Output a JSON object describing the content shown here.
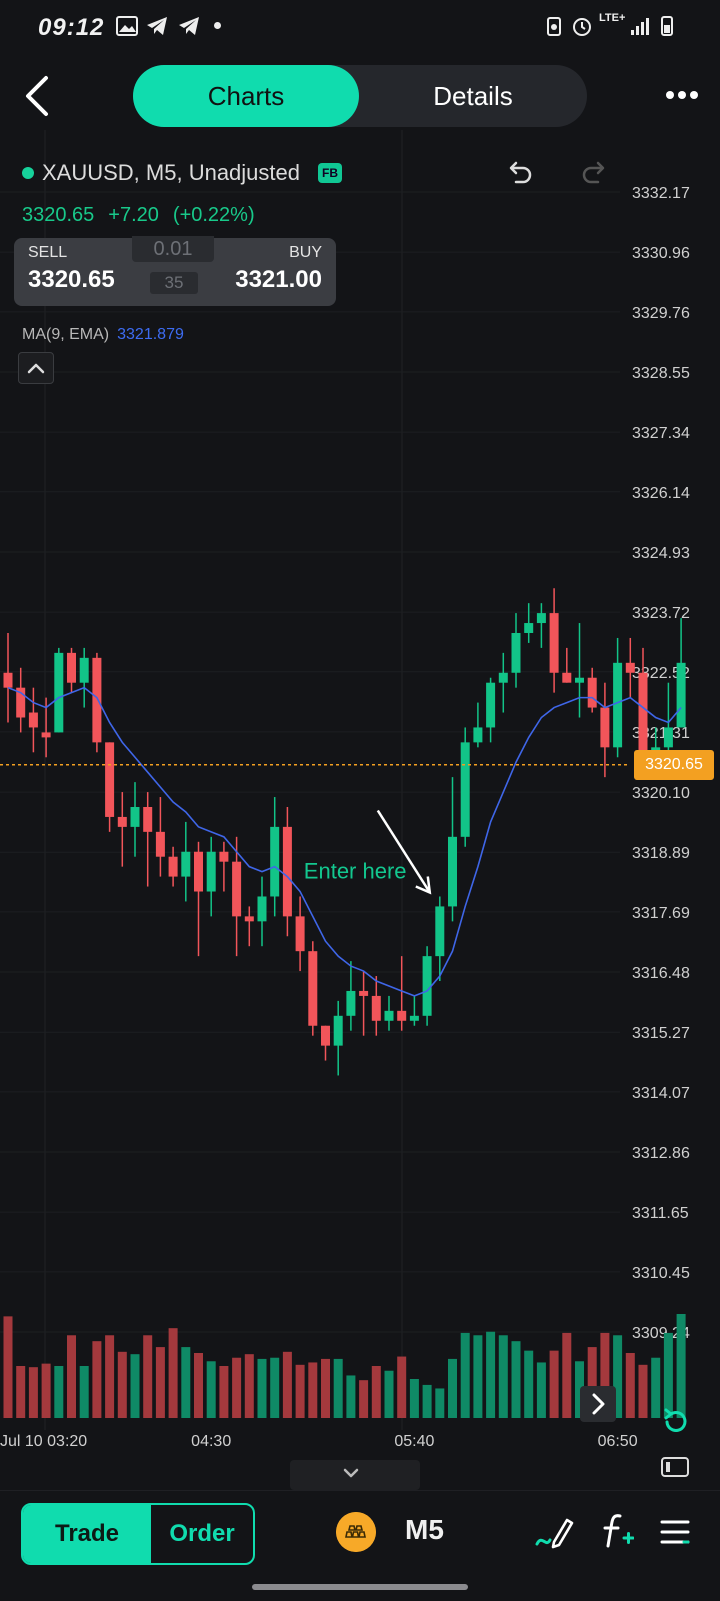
{
  "status_bar": {
    "time": "09:12",
    "network": "LTE+"
  },
  "nav": {
    "tabs": [
      {
        "label": "Charts",
        "active": true
      },
      {
        "label": "Details",
        "active": false
      }
    ]
  },
  "symbol": {
    "title": "XAUUSD, M5, Unadjusted",
    "badge": "FB"
  },
  "quote": {
    "price": "3320.65",
    "change": "+7.20",
    "change_pct": "(+0.22%)"
  },
  "trade_box": {
    "sell_label": "SELL",
    "sell_price": "3320.65",
    "buy_label": "BUY",
    "buy_price": "3321.00",
    "lot": "0.01",
    "spread": "35"
  },
  "indicator": {
    "name": "MA(9, EMA)",
    "value": "3321.879"
  },
  "chart_data": {
    "type": "candlestick",
    "y_ticks": [
      "3332.17",
      "3330.96",
      "3329.76",
      "3328.55",
      "3327.34",
      "3326.14",
      "3324.93",
      "3323.72",
      "3322.52",
      "3321.31",
      "3320.10",
      "3318.89",
      "3317.69",
      "3316.48",
      "3315.27",
      "3314.07",
      "3312.86",
      "3311.65",
      "3310.45",
      "3309.24"
    ],
    "x_ticks": [
      "Jul 10 03:20",
      "04:30",
      "05:40",
      "06:50"
    ],
    "ylim": [
      3309.24,
      3332.17
    ],
    "current_price": "3320.65",
    "annotation": "Enter here",
    "candles": [
      {
        "o": 3322.5,
        "h": 3323.3,
        "l": 3321.5,
        "c": 3322.2
      },
      {
        "o": 3322.2,
        "h": 3322.6,
        "l": 3321.3,
        "c": 3321.6
      },
      {
        "o": 3321.7,
        "h": 3322.2,
        "l": 3320.9,
        "c": 3321.4
      },
      {
        "o": 3321.3,
        "h": 3322.0,
        "l": 3320.8,
        "c": 3321.2
      },
      {
        "o": 3321.3,
        "h": 3323.0,
        "l": 3321.3,
        "c": 3322.9
      },
      {
        "o": 3322.9,
        "h": 3323.0,
        "l": 3322.1,
        "c": 3322.3
      },
      {
        "o": 3322.3,
        "h": 3323.0,
        "l": 3321.8,
        "c": 3322.8
      },
      {
        "o": 3322.8,
        "h": 3322.9,
        "l": 3320.9,
        "c": 3321.1
      },
      {
        "o": 3321.1,
        "h": 3321.1,
        "l": 3319.3,
        "c": 3319.6
      },
      {
        "o": 3319.6,
        "h": 3320.1,
        "l": 3318.6,
        "c": 3319.4
      },
      {
        "o": 3319.4,
        "h": 3320.3,
        "l": 3318.8,
        "c": 3319.8
      },
      {
        "o": 3319.8,
        "h": 3320.1,
        "l": 3318.2,
        "c": 3319.3
      },
      {
        "o": 3319.3,
        "h": 3320.0,
        "l": 3318.4,
        "c": 3318.8
      },
      {
        "o": 3318.8,
        "h": 3319.0,
        "l": 3318.2,
        "c": 3318.4
      },
      {
        "o": 3318.4,
        "h": 3319.5,
        "l": 3317.9,
        "c": 3318.9
      },
      {
        "o": 3318.9,
        "h": 3319.1,
        "l": 3316.8,
        "c": 3318.1
      },
      {
        "o": 3318.1,
        "h": 3319.2,
        "l": 3317.6,
        "c": 3318.9
      },
      {
        "o": 3318.9,
        "h": 3319.1,
        "l": 3318.1,
        "c": 3318.7
      },
      {
        "o": 3318.7,
        "h": 3319.2,
        "l": 3316.8,
        "c": 3317.6
      },
      {
        "o": 3317.6,
        "h": 3317.8,
        "l": 3317.0,
        "c": 3317.5
      },
      {
        "o": 3317.5,
        "h": 3318.4,
        "l": 3317.0,
        "c": 3318.0
      },
      {
        "o": 3318.0,
        "h": 3320.0,
        "l": 3317.6,
        "c": 3319.4
      },
      {
        "o": 3319.4,
        "h": 3319.8,
        "l": 3317.2,
        "c": 3317.6
      },
      {
        "o": 3317.6,
        "h": 3318.0,
        "l": 3316.5,
        "c": 3316.9
      },
      {
        "o": 3316.9,
        "h": 3317.1,
        "l": 3315.2,
        "c": 3315.4
      },
      {
        "o": 3315.4,
        "h": 3315.4,
        "l": 3314.7,
        "c": 3315.0
      },
      {
        "o": 3315.0,
        "h": 3315.9,
        "l": 3314.4,
        "c": 3315.6
      },
      {
        "o": 3315.6,
        "h": 3316.7,
        "l": 3315.3,
        "c": 3316.1
      },
      {
        "o": 3316.1,
        "h": 3316.5,
        "l": 3315.2,
        "c": 3316.0
      },
      {
        "o": 3316.0,
        "h": 3316.4,
        "l": 3315.2,
        "c": 3315.5
      },
      {
        "o": 3315.5,
        "h": 3316.0,
        "l": 3315.3,
        "c": 3315.7
      },
      {
        "o": 3315.7,
        "h": 3316.8,
        "l": 3315.3,
        "c": 3315.5
      },
      {
        "o": 3315.5,
        "h": 3316.0,
        "l": 3315.4,
        "c": 3315.6
      },
      {
        "o": 3315.6,
        "h": 3317.0,
        "l": 3315.4,
        "c": 3316.8
      },
      {
        "o": 3316.8,
        "h": 3318.0,
        "l": 3316.3,
        "c": 3317.8
      },
      {
        "o": 3317.8,
        "h": 3320.4,
        "l": 3317.5,
        "c": 3319.2
      },
      {
        "o": 3319.2,
        "h": 3321.4,
        "l": 3319.0,
        "c": 3321.1
      },
      {
        "o": 3321.1,
        "h": 3321.9,
        "l": 3321.0,
        "c": 3321.4
      },
      {
        "o": 3321.4,
        "h": 3322.4,
        "l": 3321.1,
        "c": 3322.3
      },
      {
        "o": 3322.3,
        "h": 3322.9,
        "l": 3321.7,
        "c": 3322.5
      },
      {
        "o": 3322.5,
        "h": 3323.7,
        "l": 3322.2,
        "c": 3323.3
      },
      {
        "o": 3323.3,
        "h": 3323.9,
        "l": 3323.1,
        "c": 3323.5
      },
      {
        "o": 3323.5,
        "h": 3323.9,
        "l": 3323.0,
        "c": 3323.7
      },
      {
        "o": 3323.7,
        "h": 3324.2,
        "l": 3322.1,
        "c": 3322.5
      },
      {
        "o": 3322.5,
        "h": 3323.0,
        "l": 3322.3,
        "c": 3322.3
      },
      {
        "o": 3322.3,
        "h": 3323.5,
        "l": 3321.6,
        "c": 3322.4
      },
      {
        "o": 3322.4,
        "h": 3322.6,
        "l": 3321.7,
        "c": 3321.8
      },
      {
        "o": 3321.8,
        "h": 3322.3,
        "l": 3320.4,
        "c": 3321.0
      },
      {
        "o": 3321.0,
        "h": 3323.2,
        "l": 3320.8,
        "c": 3322.7
      },
      {
        "o": 3322.7,
        "h": 3323.2,
        "l": 3322.0,
        "c": 3322.5
      },
      {
        "o": 3322.5,
        "h": 3323.0,
        "l": 3320.6,
        "c": 3320.9
      },
      {
        "o": 3320.9,
        "h": 3321.4,
        "l": 3320.4,
        "c": 3321.0
      },
      {
        "o": 3321.0,
        "h": 3322.3,
        "l": 3320.6,
        "c": 3321.4
      },
      {
        "o": 3321.4,
        "h": 3323.6,
        "l": 3321.4,
        "c": 3322.7
      }
    ],
    "ema": [
      3322.2,
      3322.1,
      3321.9,
      3321.8,
      3322.0,
      3322.1,
      3322.2,
      3322.0,
      3321.5,
      3321.1,
      3320.8,
      3320.5,
      3320.2,
      3319.9,
      3319.7,
      3319.4,
      3319.3,
      3319.2,
      3318.9,
      3318.6,
      3318.5,
      3318.6,
      3318.4,
      3318.1,
      3317.6,
      3317.1,
      3316.8,
      3316.6,
      3316.5,
      3316.3,
      3316.2,
      3316.1,
      3316.0,
      3316.1,
      3316.4,
      3316.9,
      3317.8,
      3318.6,
      3319.5,
      3320.1,
      3320.7,
      3321.2,
      3321.6,
      3321.8,
      3321.9,
      3322.0,
      3322.0,
      3321.8,
      3321.9,
      3322.0,
      3321.8,
      3321.6,
      3321.5,
      3321.8
    ],
    "volume": [
      86,
      44,
      43,
      46,
      44,
      70,
      44,
      65,
      70,
      56,
      54,
      70,
      60,
      76,
      60,
      55,
      48,
      44,
      51,
      54,
      50,
      51,
      56,
      45,
      47,
      50,
      50,
      36,
      32,
      44,
      40,
      52,
      33,
      28,
      25,
      50,
      72,
      70,
      73,
      70,
      65,
      57,
      47,
      57,
      72,
      48,
      60,
      72,
      70,
      55,
      45,
      51,
      72,
      88
    ]
  },
  "bottom_bar": {
    "trade_label": "Trade",
    "order_label": "Order",
    "timeframe": "M5"
  }
}
